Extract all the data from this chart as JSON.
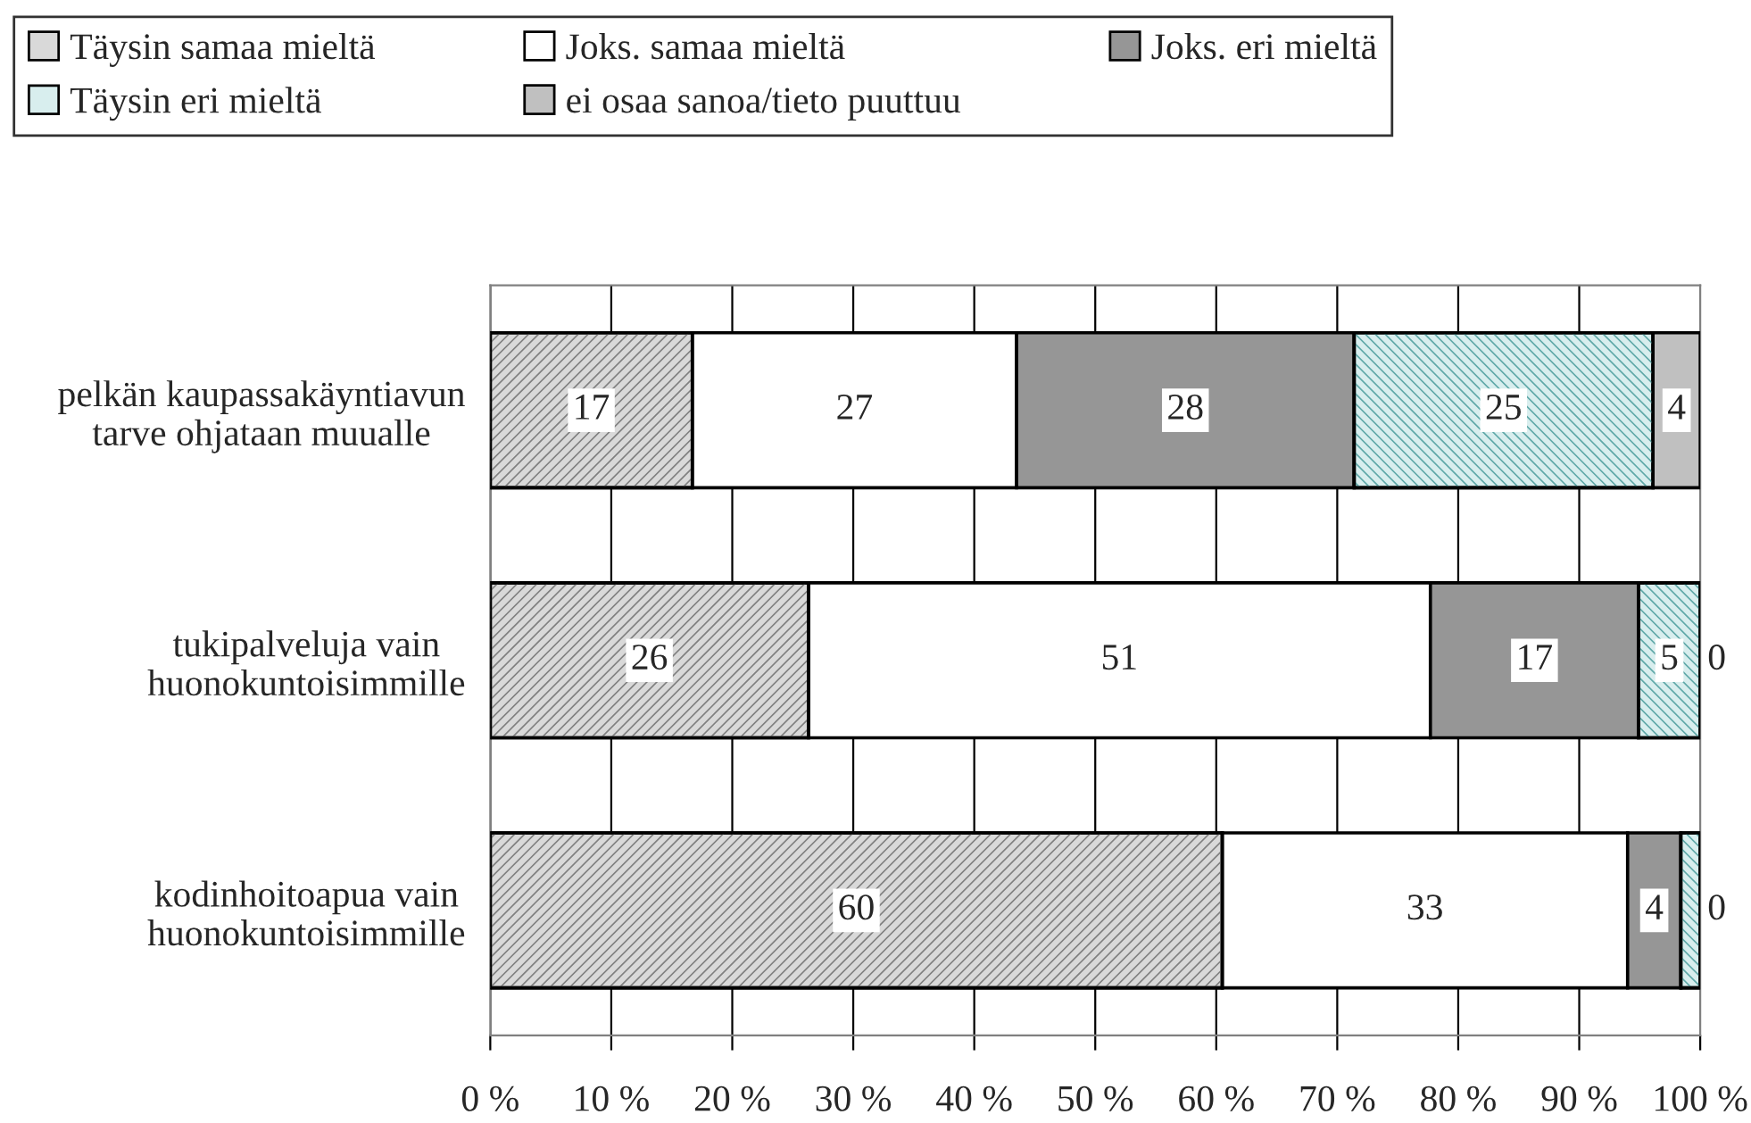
{
  "chart_data": {
    "type": "bar",
    "orientation": "horizontal",
    "stacked": true,
    "categories": [
      "pelkän kaupassakäyntiavun tarve ohjataan muualle",
      "tukipalveluja vain huonokuntoisimmille",
      "kodinhoitoapua vain huonokuntoisimmille"
    ],
    "series": [
      {
        "name": "Täysin samaa mieltä",
        "color": "#d9d9d9",
        "values": [
          16.7,
          26.3,
          60.5
        ],
        "value_labels": [
          "17",
          "26",
          "60"
        ]
      },
      {
        "name": "Joks. samaa mieltä",
        "color": "#ffffff",
        "values": [
          26.8,
          51.4,
          33.5
        ],
        "value_labels": [
          "27",
          "51",
          "33"
        ]
      },
      {
        "name": "Joks. eri mieltä",
        "color": "#969696",
        "values": [
          27.9,
          17.2,
          4.4
        ],
        "value_labels": [
          "28",
          "17",
          "4"
        ]
      },
      {
        "name": "Täysin eri mieltä",
        "color": "#d8eeee",
        "values": [
          24.7,
          5.1,
          1.6
        ],
        "value_labels": [
          "25",
          "5",
          null
        ]
      },
      {
        "name": "ei osaa sanoa/tieto puuttuu",
        "color": "#c0c0c0",
        "values": [
          3.9,
          0,
          0
        ],
        "value_labels": [
          "4",
          "0",
          "0"
        ]
      }
    ],
    "xlim": [
      0,
      100
    ],
    "xticks": [
      {
        "value": 0,
        "label": "0 %"
      },
      {
        "value": 10,
        "label": "10 %"
      },
      {
        "value": 20,
        "label": "20 %"
      },
      {
        "value": 30,
        "label": "30 %"
      },
      {
        "value": 40,
        "label": "40 %"
      },
      {
        "value": 50,
        "label": "50 %"
      },
      {
        "value": 60,
        "label": "60 %"
      },
      {
        "value": 70,
        "label": "70 %"
      },
      {
        "value": 80,
        "label": "80 %"
      },
      {
        "value": 90,
        "label": "90 %"
      },
      {
        "value": 100,
        "label": "100 %"
      }
    ],
    "grid": "x",
    "legend": "top"
  }
}
